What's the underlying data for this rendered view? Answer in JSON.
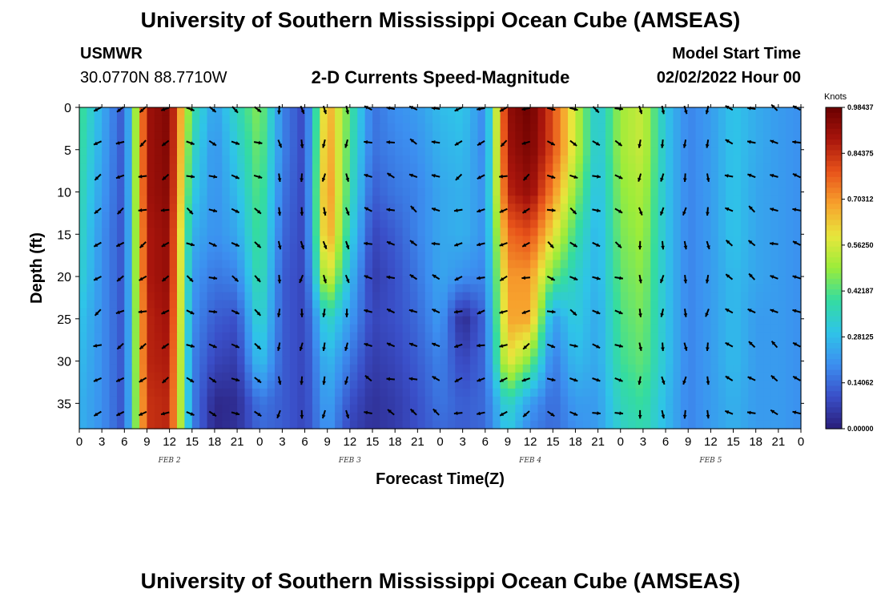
{
  "header": {
    "title": "University of Southern Mississippi Ocean Cube (AMSEAS)",
    "station": "USMWR",
    "coords": "30.0770N  88.7710W",
    "subtitle": "2-D Currents Speed-Magnitude",
    "model_start_label": "Model Start Time",
    "model_start_value": "02/02/2022 Hour 00"
  },
  "footer": {
    "title": "University of Southern Mississippi Ocean Cube (AMSEAS)"
  },
  "colors": {
    "colormap": [
      "#2a1e7a",
      "#3a4fc8",
      "#3c8ff0",
      "#2fc4e8",
      "#34dca0",
      "#9bec3a",
      "#e8e63c",
      "#f7a02d",
      "#e8531a",
      "#a8150c",
      "#6a0000"
    ]
  },
  "chart_data": {
    "type": "heatmap",
    "title": "2-D Currents Speed-Magnitude",
    "xlabel": "Forecast Time(Z)",
    "ylabel": "Depth (ft)",
    "x_ticks": [
      "0",
      "3",
      "6",
      "9",
      "12",
      "15",
      "18",
      "21",
      "0",
      "3",
      "6",
      "9",
      "12",
      "15",
      "18",
      "21",
      "0",
      "3",
      "6",
      "9",
      "12",
      "15",
      "18",
      "21",
      "0",
      "3",
      "6",
      "9",
      "12",
      "15",
      "18",
      "21",
      "0"
    ],
    "date_labels": [
      {
        "label": "FEB 2",
        "hour": 12
      },
      {
        "label": "FEB 3",
        "hour": 36
      },
      {
        "label": "FEB 4",
        "hour": 60
      },
      {
        "label": "FEB 5",
        "hour": 84
      }
    ],
    "xlim_hours": [
      0,
      96
    ],
    "y_ticks": [
      0,
      5,
      10,
      15,
      20,
      25,
      30,
      35
    ],
    "ylim_ft": [
      0,
      38
    ],
    "colorbar": {
      "label": "Knots",
      "tick_labels": [
        "0.98437",
        "0.84375",
        "0.70312",
        "0.56250",
        "0.42187",
        "0.28125",
        "0.14062",
        "0.00000"
      ],
      "range": [
        0,
        0.98437
      ]
    },
    "series": {
      "hours": [
        0,
        3,
        6,
        9,
        12,
        15,
        18,
        21,
        24,
        27,
        30,
        33,
        36,
        39,
        42,
        45,
        48,
        51,
        54,
        57,
        60,
        63,
        66,
        69,
        72,
        75,
        78,
        81,
        84,
        87,
        90,
        93,
        96
      ],
      "depths_ft": [
        0,
        5,
        10,
        15,
        20,
        25,
        30,
        35,
        38
      ],
      "speed_knots": [
        [
          0.42,
          0.25,
          0.1,
          0.9,
          0.95,
          0.4,
          0.22,
          0.36,
          0.48,
          0.18,
          0.08,
          0.7,
          0.42,
          0.15,
          0.2,
          0.22,
          0.28,
          0.3,
          0.18,
          0.92,
          0.98,
          0.8,
          0.55,
          0.3,
          0.5,
          0.55,
          0.3,
          0.18,
          0.22,
          0.3,
          0.25,
          0.22,
          0.2
        ],
        [
          0.4,
          0.24,
          0.1,
          0.9,
          0.95,
          0.36,
          0.2,
          0.32,
          0.46,
          0.18,
          0.08,
          0.72,
          0.4,
          0.15,
          0.18,
          0.2,
          0.26,
          0.28,
          0.18,
          0.9,
          0.96,
          0.8,
          0.55,
          0.3,
          0.5,
          0.55,
          0.3,
          0.18,
          0.22,
          0.3,
          0.25,
          0.22,
          0.2
        ],
        [
          0.38,
          0.22,
          0.1,
          0.9,
          0.94,
          0.32,
          0.2,
          0.28,
          0.44,
          0.16,
          0.08,
          0.74,
          0.38,
          0.12,
          0.16,
          0.18,
          0.24,
          0.26,
          0.2,
          0.86,
          0.92,
          0.72,
          0.48,
          0.28,
          0.48,
          0.52,
          0.3,
          0.18,
          0.22,
          0.3,
          0.24,
          0.22,
          0.2
        ],
        [
          0.36,
          0.2,
          0.1,
          0.88,
          0.92,
          0.26,
          0.2,
          0.24,
          0.42,
          0.14,
          0.08,
          0.72,
          0.34,
          0.08,
          0.12,
          0.18,
          0.24,
          0.26,
          0.2,
          0.76,
          0.8,
          0.6,
          0.4,
          0.26,
          0.46,
          0.5,
          0.3,
          0.18,
          0.22,
          0.3,
          0.24,
          0.22,
          0.2
        ],
        [
          0.34,
          0.2,
          0.1,
          0.88,
          0.92,
          0.22,
          0.16,
          0.18,
          0.4,
          0.12,
          0.08,
          0.6,
          0.28,
          0.06,
          0.1,
          0.16,
          0.24,
          0.2,
          0.18,
          0.7,
          0.7,
          0.45,
          0.34,
          0.26,
          0.44,
          0.48,
          0.3,
          0.18,
          0.22,
          0.28,
          0.24,
          0.22,
          0.2
        ],
        [
          0.3,
          0.2,
          0.1,
          0.86,
          0.9,
          0.2,
          0.12,
          0.1,
          0.36,
          0.12,
          0.08,
          0.36,
          0.22,
          0.08,
          0.1,
          0.14,
          0.22,
          0.02,
          0.14,
          0.68,
          0.68,
          0.22,
          0.32,
          0.24,
          0.42,
          0.46,
          0.3,
          0.18,
          0.22,
          0.28,
          0.22,
          0.22,
          0.2
        ],
        [
          0.28,
          0.2,
          0.1,
          0.86,
          0.88,
          0.18,
          0.08,
          0.06,
          0.3,
          0.12,
          0.08,
          0.28,
          0.16,
          0.06,
          0.08,
          0.12,
          0.18,
          0.08,
          0.14,
          0.6,
          0.46,
          0.16,
          0.28,
          0.24,
          0.4,
          0.44,
          0.3,
          0.18,
          0.22,
          0.28,
          0.22,
          0.22,
          0.2
        ],
        [
          0.26,
          0.2,
          0.1,
          0.84,
          0.86,
          0.18,
          0.02,
          0.03,
          0.16,
          0.12,
          0.08,
          0.24,
          0.1,
          0.04,
          0.06,
          0.1,
          0.16,
          0.12,
          0.14,
          0.36,
          0.22,
          0.14,
          0.22,
          0.22,
          0.36,
          0.4,
          0.28,
          0.18,
          0.22,
          0.26,
          0.22,
          0.22,
          0.2
        ],
        [
          0.26,
          0.2,
          0.1,
          0.84,
          0.86,
          0.18,
          0.02,
          0.04,
          0.14,
          0.12,
          0.08,
          0.22,
          0.08,
          0.04,
          0.06,
          0.1,
          0.14,
          0.12,
          0.14,
          0.32,
          0.18,
          0.14,
          0.2,
          0.22,
          0.34,
          0.38,
          0.28,
          0.18,
          0.22,
          0.26,
          0.22,
          0.22,
          0.2
        ]
      ]
    }
  }
}
